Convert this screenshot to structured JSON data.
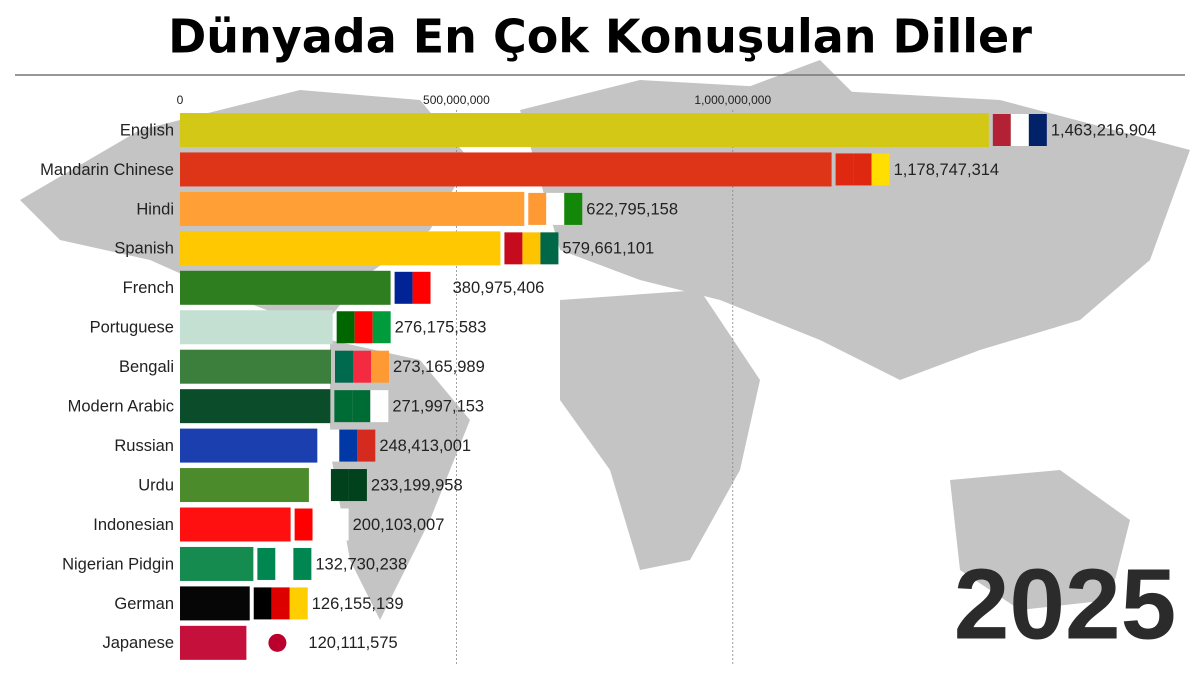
{
  "chart_data": {
    "type": "bar",
    "orientation": "horizontal",
    "title": "Dünyada En Çok Konuşulan Diller",
    "annotation": "2025",
    "categories": [
      "English",
      "Mandarin Chinese",
      "Hindi",
      "Spanish",
      "French",
      "Portuguese",
      "Bengali",
      "Modern Arabic",
      "Russian",
      "Urdu",
      "Indonesian",
      "Nigerian Pidgin",
      "German",
      "Japanese"
    ],
    "values": [
      1463216904,
      1178747314,
      622795158,
      579661101,
      380975406,
      276175583,
      273165989,
      271997153,
      248413001,
      233199958,
      200103007,
      132730238,
      126155139,
      120111575
    ],
    "value_labels": [
      "1,463,216,904",
      "1,178,747,314",
      "622,795,158",
      "579,661,101",
      "380,975,406",
      "276,175,583",
      "273,165,989",
      "271,997,153",
      "248,413,001",
      "233,199,958",
      "200,103,007",
      "132,730,238",
      "126,155,139",
      "120,111,575"
    ],
    "colors": [
      "#d3c815",
      "#de3418",
      "#ff9f35",
      "#ffc800",
      "#2e7d1f",
      "#c3e0d3",
      "#3c7e3b",
      "#0b4d2b",
      "#1b3fae",
      "#4b8b2b",
      "#ff1010",
      "#158b50",
      "#060606",
      "#c4103b"
    ],
    "xlim": [
      0,
      1800000000
    ],
    "xticks": [
      0,
      {
        "value": 500000000,
        "label": "500,000,000"
      },
      {
        "value": 1000000000,
        "label": "1,000,000,000"
      }
    ],
    "grid": true
  }
}
